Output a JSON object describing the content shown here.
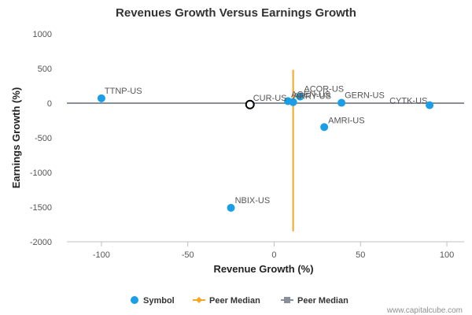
{
  "chart_data": {
    "type": "scatter",
    "title": "Revenues Growth Versus Earnings Growth",
    "xlabel": "Revenue Growth (%)",
    "ylabel": "Earnings Growth (%)",
    "xlim": [
      -120,
      110
    ],
    "ylim": [
      -2000,
      1000
    ],
    "xticks": [
      -100,
      -50,
      0,
      50,
      100
    ],
    "yticks": [
      1000,
      500,
      0,
      -500,
      -1000,
      -1500,
      -2000
    ],
    "grid": false,
    "legend_position": "bottom",
    "colors": {
      "symbol": "#1a9fe6",
      "peer_median_revenue": "#f5a623",
      "peer_median_earnings": "#8a8f99",
      "highlight_outline": "#000000"
    },
    "points": [
      {
        "label": "TTNP-US",
        "x": -100,
        "y": 70
      },
      {
        "label": "NBIX-US",
        "x": -25,
        "y": -1510
      },
      {
        "label": "AMRI-US",
        "x": 29,
        "y": -345
      },
      {
        "label": "GERN-US",
        "x": 39,
        "y": 5
      },
      {
        "label": "CYTK-US",
        "x": 90,
        "y": -30
      },
      {
        "label": "ACOR-US",
        "x": 15,
        "y": 95
      },
      {
        "label": "AGEN-US",
        "x": 8,
        "y": 30
      },
      {
        "label": "ARRY-US",
        "x": 11,
        "y": 15
      }
    ],
    "highlight": {
      "label": "CUR-US",
      "x": -14,
      "y": -20
    },
    "peer_median": {
      "revenue_growth": 11,
      "earnings_growth": 0
    },
    "legend": [
      {
        "name": "Symbol",
        "marker": "circle"
      },
      {
        "name": "Peer Median",
        "marker": "line-diamond"
      },
      {
        "name": "Peer Median",
        "marker": "line-square"
      }
    ]
  },
  "credit": "www.capitalcube.com"
}
